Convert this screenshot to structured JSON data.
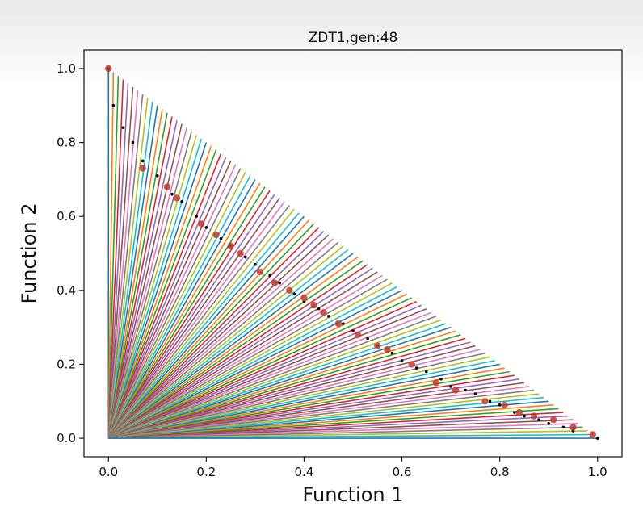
{
  "chart_data": {
    "type": "line",
    "title": "ZDT1,gen:48",
    "xlabel": "Function 1",
    "ylabel": "Function 2",
    "xlim": [
      -0.05,
      1.05
    ],
    "ylim": [
      -0.05,
      1.05
    ],
    "xticks": [
      "0.0",
      "0.2",
      "0.4",
      "0.6",
      "0.8",
      "1.0"
    ],
    "yticks": [
      "0.0",
      "0.2",
      "0.4",
      "0.6",
      "0.8",
      "1.0"
    ],
    "grid": false,
    "legend": "none",
    "reference_lines": {
      "origin": [
        0,
        0
      ],
      "count": 100,
      "description": "reference direction rays from the origin to the line f1 + f2 = 1",
      "colors": [
        "#1f77b4",
        "#ff7f0e",
        "#2ca02c",
        "#d62728",
        "#9467bd",
        "#8c564b",
        "#e377c2",
        "#7f7f7f",
        "#bcbd22",
        "#17becf"
      ]
    },
    "series": [
      {
        "color": "#000000",
        "marker": "dot",
        "points": [
          [
            0.0,
            1.0
          ],
          [
            0.01,
            0.9
          ],
          [
            0.03,
            0.84
          ],
          [
            0.05,
            0.8
          ],
          [
            0.07,
            0.75
          ],
          [
            0.1,
            0.71
          ],
          [
            0.13,
            0.66
          ],
          [
            0.15,
            0.64
          ],
          [
            0.18,
            0.6
          ],
          [
            0.2,
            0.57
          ],
          [
            0.23,
            0.54
          ],
          [
            0.25,
            0.52
          ],
          [
            0.28,
            0.49
          ],
          [
            0.3,
            0.47
          ],
          [
            0.33,
            0.44
          ],
          [
            0.35,
            0.42
          ],
          [
            0.38,
            0.39
          ],
          [
            0.4,
            0.37
          ],
          [
            0.43,
            0.35
          ],
          [
            0.45,
            0.33
          ],
          [
            0.48,
            0.31
          ],
          [
            0.5,
            0.29
          ],
          [
            0.53,
            0.27
          ],
          [
            0.55,
            0.25
          ],
          [
            0.58,
            0.23
          ],
          [
            0.6,
            0.21
          ],
          [
            0.63,
            0.19
          ],
          [
            0.65,
            0.18
          ],
          [
            0.68,
            0.16
          ],
          [
            0.7,
            0.14
          ],
          [
            0.73,
            0.13
          ],
          [
            0.75,
            0.12
          ],
          [
            0.78,
            0.1
          ],
          [
            0.8,
            0.09
          ],
          [
            0.83,
            0.07
          ],
          [
            0.85,
            0.06
          ],
          [
            0.88,
            0.05
          ],
          [
            0.9,
            0.04
          ],
          [
            0.93,
            0.03
          ],
          [
            0.95,
            0.02
          ],
          [
            1.0,
            0.0
          ]
        ]
      },
      {
        "color": "#c0392b",
        "marker": "circle",
        "points": [
          [
            0.0,
            1.0
          ],
          [
            0.07,
            0.73
          ],
          [
            0.12,
            0.68
          ],
          [
            0.14,
            0.65
          ],
          [
            0.19,
            0.58
          ],
          [
            0.22,
            0.55
          ],
          [
            0.25,
            0.52
          ],
          [
            0.27,
            0.5
          ],
          [
            0.31,
            0.45
          ],
          [
            0.34,
            0.42
          ],
          [
            0.37,
            0.4
          ],
          [
            0.4,
            0.38
          ],
          [
            0.42,
            0.36
          ],
          [
            0.44,
            0.34
          ],
          [
            0.47,
            0.31
          ],
          [
            0.51,
            0.28
          ],
          [
            0.55,
            0.25
          ],
          [
            0.57,
            0.24
          ],
          [
            0.62,
            0.2
          ],
          [
            0.67,
            0.15
          ],
          [
            0.71,
            0.13
          ],
          [
            0.77,
            0.1
          ],
          [
            0.81,
            0.09
          ],
          [
            0.84,
            0.07
          ],
          [
            0.87,
            0.06
          ],
          [
            0.91,
            0.05
          ],
          [
            0.95,
            0.03
          ],
          [
            0.99,
            0.01
          ]
        ]
      }
    ]
  }
}
